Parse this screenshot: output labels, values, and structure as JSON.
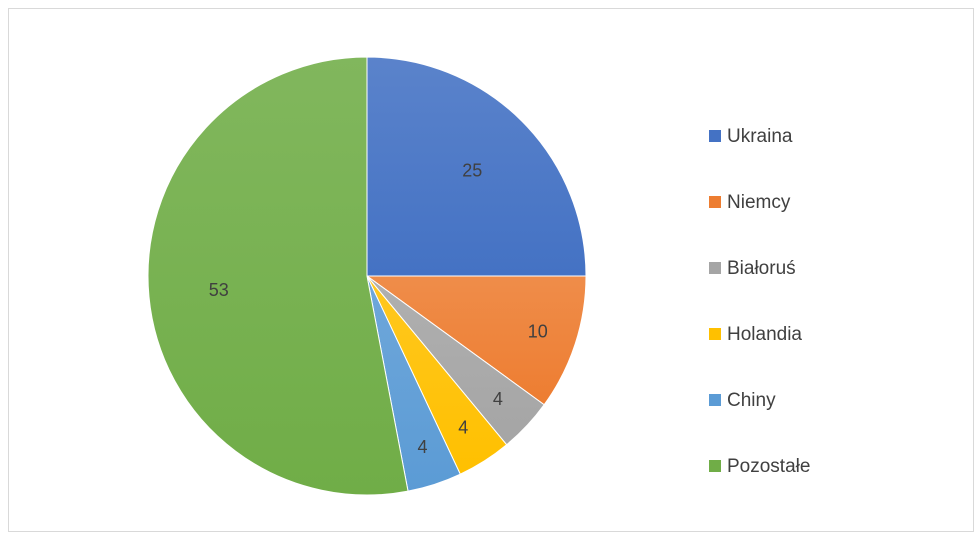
{
  "chart_data": {
    "type": "pie",
    "categories": [
      "Ukraina",
      "Niemcy",
      "Białoruś",
      "Holandia",
      "Chiny",
      "Pozostałe"
    ],
    "values": [
      25,
      10,
      4,
      4,
      4,
      53
    ],
    "colors": [
      "#4472c4",
      "#ed7d31",
      "#a5a5a5",
      "#ffc000",
      "#5b9bd5",
      "#70ad47"
    ],
    "data_labels": [
      "25",
      "10",
      "4",
      "4",
      "4",
      "53"
    ],
    "legend_position": "right",
    "start_angle": "12 o'clock",
    "direction": "clockwise"
  }
}
